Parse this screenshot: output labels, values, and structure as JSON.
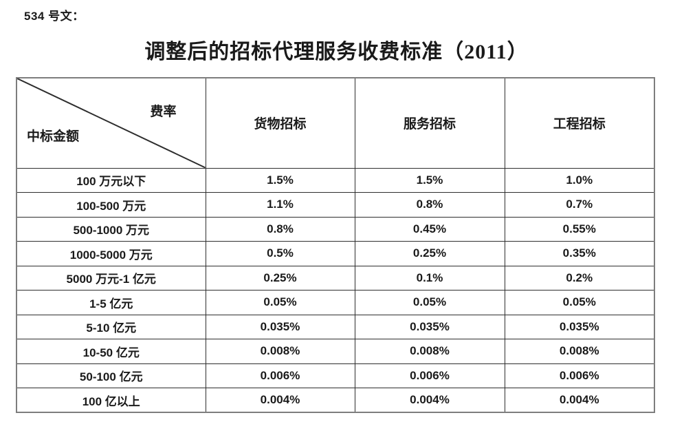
{
  "page": {
    "doc_label": "534 号文："
  },
  "title": "调整后的招标代理服务收费标准（2011）",
  "table": {
    "corner": {
      "top_right": "费率",
      "bottom_left": "中标金额"
    },
    "columns": [
      "货物招标",
      "服务招标",
      "工程招标"
    ],
    "rows": [
      {
        "label": "100 万元以下",
        "values": [
          "1.5%",
          "1.5%",
          "1.0%"
        ]
      },
      {
        "label": "100-500 万元",
        "values": [
          "1.1%",
          "0.8%",
          "0.7%"
        ]
      },
      {
        "label": "500-1000 万元",
        "values": [
          "0.8%",
          "0.45%",
          "0.55%"
        ]
      },
      {
        "label": "1000-5000 万元",
        "values": [
          "0.5%",
          "0.25%",
          "0.35%"
        ]
      },
      {
        "label": "5000 万元-1 亿元",
        "values": [
          "0.25%",
          "0.1%",
          "0.2%"
        ]
      },
      {
        "label": "1-5 亿元",
        "values": [
          "0.05%",
          "0.05%",
          "0.05%"
        ]
      },
      {
        "label": "5-10 亿元",
        "values": [
          "0.035%",
          "0.035%",
          "0.035%"
        ]
      },
      {
        "label": "10-50 亿元",
        "values": [
          "0.008%",
          "0.008%",
          "0.008%"
        ]
      },
      {
        "label": "50-100 亿元",
        "values": [
          "0.006%",
          "0.006%",
          "0.006%"
        ]
      },
      {
        "label": "100 亿以上",
        "values": [
          "0.004%",
          "0.004%",
          "0.004%"
        ]
      }
    ]
  },
  "colors": {
    "text": "#1a1a1a",
    "grid_line": "#2d2d2d",
    "outer_border": "#7d7d7d",
    "background": "#ffffff"
  }
}
